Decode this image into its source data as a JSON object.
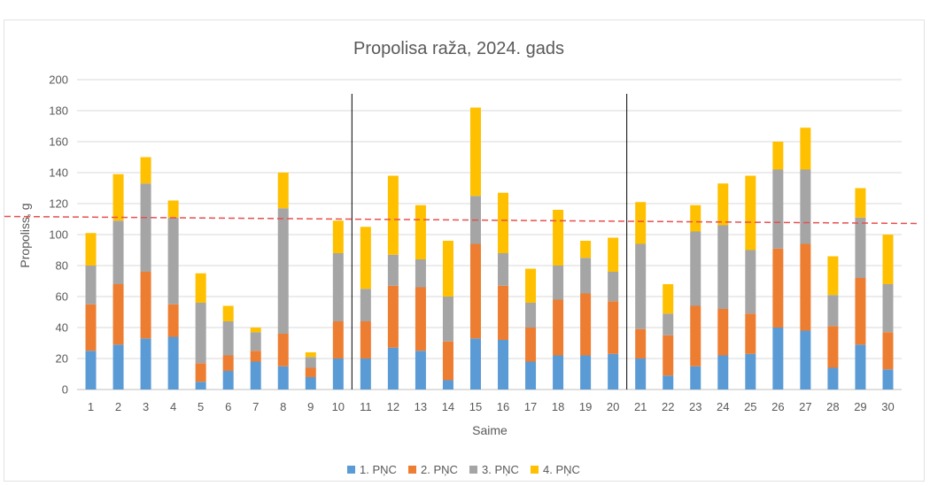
{
  "chart_data": {
    "type": "bar",
    "stacked": true,
    "title": "Propolisa raža, 2024. gads",
    "xlabel": "Saime",
    "ylabel": "Propoliss, g",
    "ylim": [
      0,
      200
    ],
    "yticks": [
      0,
      20,
      40,
      60,
      80,
      100,
      120,
      140,
      160,
      180,
      200
    ],
    "grid": true,
    "legend": "bottom",
    "categories": [
      "1",
      "2",
      "3",
      "4",
      "5",
      "6",
      "7",
      "8",
      "9",
      "10",
      "11",
      "12",
      "13",
      "14",
      "15",
      "16",
      "17",
      "18",
      "19",
      "20",
      "21",
      "22",
      "23",
      "24",
      "25",
      "26",
      "27",
      "28",
      "29",
      "30"
    ],
    "series": [
      {
        "name": "1. PŅC",
        "color": "#5B9BD5",
        "values": [
          25,
          29,
          33,
          34,
          5,
          12,
          18,
          15,
          8,
          20,
          20,
          27,
          25,
          6,
          33,
          32,
          18,
          22,
          22,
          23,
          20,
          9,
          15,
          22,
          23,
          40,
          38,
          14,
          29,
          13
        ]
      },
      {
        "name": "2. PŅC",
        "color": "#ED7D31",
        "values": [
          30,
          39,
          43,
          21,
          12,
          10,
          7,
          21,
          6,
          24,
          24,
          40,
          41,
          25,
          61,
          35,
          22,
          36,
          40,
          34,
          19,
          26,
          39,
          30,
          26,
          51,
          56,
          27,
          43,
          24
        ]
      },
      {
        "name": "3. PŅC",
        "color": "#A5A5A5",
        "values": [
          25,
          41,
          57,
          56,
          39,
          22,
          12,
          81,
          7,
          44,
          21,
          20,
          18,
          29,
          31,
          21,
          16,
          22,
          23,
          19,
          55,
          14,
          48,
          54,
          41,
          51,
          48,
          20,
          39,
          31
        ]
      },
      {
        "name": "4. PŅC",
        "color": "#FFC000",
        "values": [
          21,
          30,
          17,
          11,
          19,
          10,
          3,
          23,
          3,
          21,
          40,
          51,
          35,
          36,
          57,
          39,
          22,
          36,
          11,
          22,
          27,
          19,
          17,
          27,
          48,
          18,
          27,
          25,
          19,
          32
        ]
      }
    ],
    "reference_line": {
      "value": 110,
      "color": "#E84F4F",
      "style": "dashed"
    },
    "group_dividers_after": [
      "10",
      "20"
    ]
  }
}
